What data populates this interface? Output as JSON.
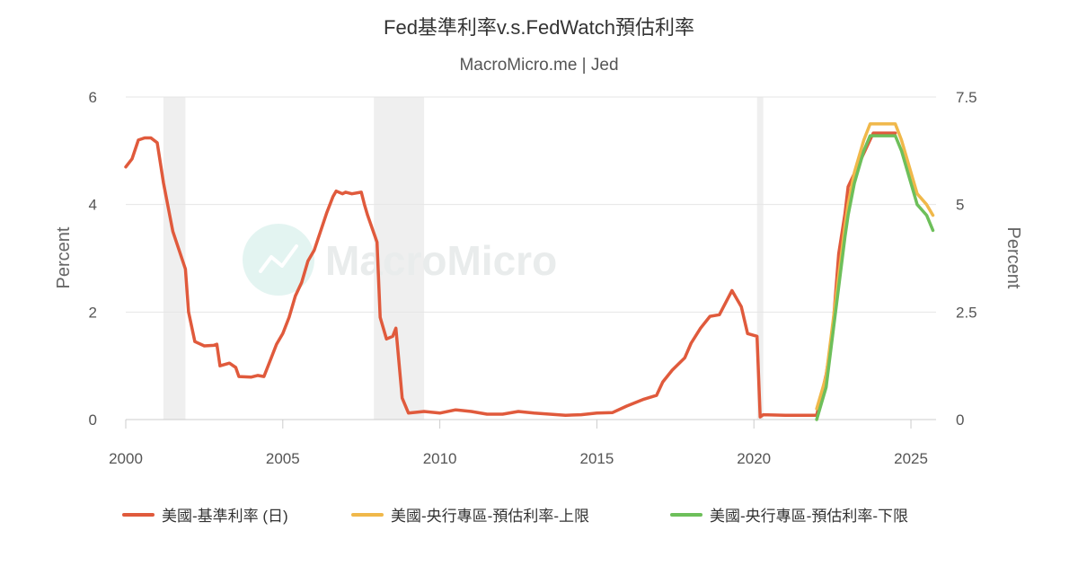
{
  "title": "Fed基準利率v.s.FedWatch預估利率",
  "subtitle": "MacroMicro.me | Jed",
  "watermark": "MacroMicro",
  "chart_data": {
    "type": "line",
    "xlabel": "",
    "x_ticks": [
      "2000",
      "2005",
      "2010",
      "2015",
      "2020",
      "2025"
    ],
    "xlim": [
      2000,
      2025.8
    ],
    "y_left": {
      "label": "Percent",
      "ylim": [
        0,
        6
      ],
      "ticks": [
        "0",
        "2",
        "4",
        "6"
      ]
    },
    "y_right": {
      "label": "Percent",
      "ylim": [
        0,
        7.5
      ],
      "ticks": [
        "0",
        "2.5",
        "5",
        "7.5"
      ]
    },
    "grid": true,
    "legend_position": "bottom",
    "recession_bands": [
      [
        2001.2,
        2001.9
      ],
      [
        2007.9,
        2009.5
      ],
      [
        2020.1,
        2020.3
      ]
    ],
    "series": [
      {
        "name": "美國-基準利率 (日)",
        "color": "#e05a3c",
        "axis": "left",
        "points": [
          [
            2000.0,
            4.7
          ],
          [
            2000.2,
            4.85
          ],
          [
            2000.4,
            5.2
          ],
          [
            2000.6,
            5.24
          ],
          [
            2000.8,
            5.24
          ],
          [
            2001.0,
            5.15
          ],
          [
            2001.2,
            4.4
          ],
          [
            2001.5,
            3.5
          ],
          [
            2001.9,
            2.8
          ],
          [
            2002.0,
            2.0
          ],
          [
            2002.2,
            1.45
          ],
          [
            2002.5,
            1.37
          ],
          [
            2002.8,
            1.38
          ],
          [
            2002.9,
            1.4
          ],
          [
            2003.0,
            1.0
          ],
          [
            2003.3,
            1.05
          ],
          [
            2003.5,
            0.97
          ],
          [
            2003.6,
            0.8
          ],
          [
            2004.0,
            0.79
          ],
          [
            2004.2,
            0.82
          ],
          [
            2004.4,
            0.8
          ],
          [
            2004.6,
            1.1
          ],
          [
            2004.8,
            1.4
          ],
          [
            2005.0,
            1.6
          ],
          [
            2005.2,
            1.9
          ],
          [
            2005.4,
            2.3
          ],
          [
            2005.6,
            2.55
          ],
          [
            2005.8,
            2.95
          ],
          [
            2006.0,
            3.15
          ],
          [
            2006.2,
            3.5
          ],
          [
            2006.4,
            3.85
          ],
          [
            2006.6,
            4.15
          ],
          [
            2006.7,
            4.25
          ],
          [
            2006.9,
            4.2
          ],
          [
            2007.0,
            4.23
          ],
          [
            2007.2,
            4.2
          ],
          [
            2007.5,
            4.23
          ],
          [
            2007.6,
            4.0
          ],
          [
            2007.7,
            3.8
          ],
          [
            2008.0,
            3.3
          ],
          [
            2008.1,
            1.9
          ],
          [
            2008.2,
            1.7
          ],
          [
            2008.3,
            1.5
          ],
          [
            2008.5,
            1.55
          ],
          [
            2008.6,
            1.7
          ],
          [
            2008.8,
            0.4
          ],
          [
            2009.0,
            0.12
          ],
          [
            2009.5,
            0.15
          ],
          [
            2010.0,
            0.12
          ],
          [
            2010.5,
            0.18
          ],
          [
            2011.0,
            0.15
          ],
          [
            2011.5,
            0.1
          ],
          [
            2012.0,
            0.1
          ],
          [
            2012.5,
            0.15
          ],
          [
            2013.0,
            0.12
          ],
          [
            2013.5,
            0.1
          ],
          [
            2014.0,
            0.08
          ],
          [
            2014.5,
            0.09
          ],
          [
            2015.0,
            0.12
          ],
          [
            2015.5,
            0.13
          ],
          [
            2015.95,
            0.25
          ],
          [
            2016.5,
            0.38
          ],
          [
            2016.9,
            0.45
          ],
          [
            2017.1,
            0.7
          ],
          [
            2017.4,
            0.92
          ],
          [
            2017.8,
            1.15
          ],
          [
            2018.0,
            1.42
          ],
          [
            2018.3,
            1.7
          ],
          [
            2018.6,
            1.92
          ],
          [
            2018.9,
            1.95
          ],
          [
            2019.3,
            2.4
          ],
          [
            2019.6,
            2.1
          ],
          [
            2019.8,
            1.6
          ],
          [
            2020.1,
            1.55
          ],
          [
            2020.2,
            0.05
          ],
          [
            2020.3,
            0.09
          ],
          [
            2021.0,
            0.08
          ],
          [
            2021.5,
            0.08
          ],
          [
            2022.0,
            0.08
          ],
          [
            2022.1,
            0.33
          ],
          [
            2022.3,
            0.83
          ],
          [
            2022.5,
            1.58
          ],
          [
            2022.6,
            2.33
          ],
          [
            2022.7,
            3.08
          ],
          [
            2022.9,
            3.83
          ],
          [
            2023.0,
            4.33
          ],
          [
            2023.2,
            4.58
          ],
          [
            2023.4,
            4.83
          ],
          [
            2023.6,
            5.08
          ],
          [
            2023.8,
            5.33
          ],
          [
            2024.0,
            5.33
          ],
          [
            2024.5,
            5.33
          ]
        ]
      },
      {
        "name": "美國-央行專區-預估利率-上限",
        "color": "#f0b84a",
        "axis": "right",
        "points": [
          [
            2022.0,
            0.25
          ],
          [
            2022.3,
            1.0
          ],
          [
            2022.6,
            2.75
          ],
          [
            2022.9,
            4.5
          ],
          [
            2023.0,
            5.0
          ],
          [
            2023.2,
            5.75
          ],
          [
            2023.5,
            6.5
          ],
          [
            2023.7,
            6.875
          ],
          [
            2024.0,
            6.875
          ],
          [
            2024.5,
            6.875
          ],
          [
            2024.7,
            6.5
          ],
          [
            2025.0,
            5.75
          ],
          [
            2025.2,
            5.25
          ],
          [
            2025.5,
            5.0
          ],
          [
            2025.7,
            4.75
          ]
        ]
      },
      {
        "name": "美國-央行專區-預估利率-下限",
        "color": "#6dbf5a",
        "axis": "right",
        "points": [
          [
            2022.0,
            0.0
          ],
          [
            2022.3,
            0.75
          ],
          [
            2022.6,
            2.5
          ],
          [
            2022.9,
            4.25
          ],
          [
            2023.0,
            4.75
          ],
          [
            2023.2,
            5.5
          ],
          [
            2023.5,
            6.25
          ],
          [
            2023.7,
            6.6
          ],
          [
            2024.0,
            6.6
          ],
          [
            2024.5,
            6.6
          ],
          [
            2024.7,
            6.25
          ],
          [
            2025.0,
            5.5
          ],
          [
            2025.2,
            5.0
          ],
          [
            2025.5,
            4.75
          ],
          [
            2025.7,
            4.4
          ]
        ]
      }
    ]
  }
}
